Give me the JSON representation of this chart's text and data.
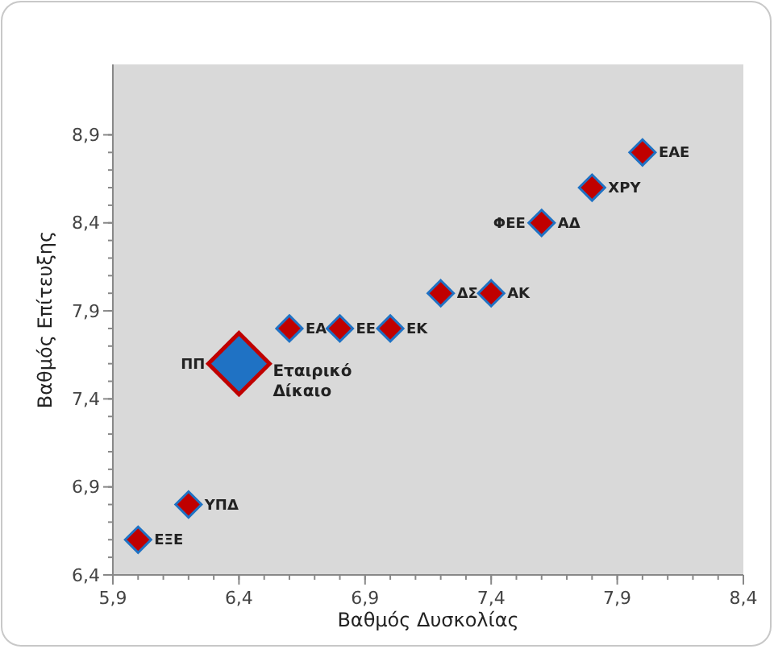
{
  "chart_data": {
    "type": "scatter",
    "xlabel": "Βαθμός Δυσκολίας",
    "ylabel": "Βαθμός Επίτευξης",
    "marker": "diamond",
    "grid": false,
    "xlim": [
      5.9,
      8.4
    ],
    "xticks": [
      {
        "value": 5.9,
        "label": "5,9"
      },
      {
        "value": 6.4,
        "label": "6,4"
      },
      {
        "value": 6.9,
        "label": "6,9"
      },
      {
        "value": 7.4,
        "label": "7,4"
      },
      {
        "value": 7.9,
        "label": "7,9"
      },
      {
        "value": 8.4,
        "label": "8,4"
      }
    ],
    "ylim": [
      6.4,
      9.3
    ],
    "yticks": [
      {
        "value": 6.4,
        "label": "6,4"
      },
      {
        "value": 6.9,
        "label": "6,9"
      },
      {
        "value": 7.4,
        "label": "7,4"
      },
      {
        "value": 7.9,
        "label": "7,9"
      },
      {
        "value": 8.4,
        "label": "8,4"
      },
      {
        "value": 8.9,
        "label": "8,9"
      }
    ],
    "series": [
      {
        "color": "#c00000",
        "x": [
          6.0,
          6.2,
          6.6,
          6.8,
          7.0,
          7.2,
          7.4,
          7.6,
          7.8,
          8.0
        ],
        "values": [
          6.6,
          6.8,
          7.8,
          7.8,
          7.8,
          8.0,
          8.0,
          8.4,
          8.6,
          8.8
        ]
      },
      {
        "color": "#1f72c4",
        "x": [
          6.4
        ],
        "values": [
          7.6
        ]
      }
    ],
    "annotations": [
      {
        "text": "ΕΞΕ",
        "x": 6.0,
        "y": 6.6
      },
      {
        "text": "ΥΠΔ",
        "x": 6.2,
        "y": 6.8
      },
      {
        "text": "ΠΠ",
        "x": 6.4,
        "y": 7.6
      },
      {
        "text": "Εταιρικό Δίκαιο",
        "x": 6.4,
        "y": 7.6
      },
      {
        "text": "ΕΑ",
        "x": 6.6,
        "y": 7.8
      },
      {
        "text": "ΕΕ",
        "x": 6.8,
        "y": 7.8
      },
      {
        "text": "ΕΚ",
        "x": 7.0,
        "y": 7.8
      },
      {
        "text": "ΔΣ",
        "x": 7.2,
        "y": 8.0
      },
      {
        "text": "ΑΚ",
        "x": 7.4,
        "y": 8.0
      },
      {
        "text": "ΦΕΕ",
        "x": 7.6,
        "y": 8.4
      },
      {
        "text": "ΑΔ",
        "x": 7.6,
        "y": 8.4
      },
      {
        "text": "ΧΡΥ",
        "x": 7.8,
        "y": 8.6
      },
      {
        "text": "ΕΑΕ",
        "x": 8.0,
        "y": 8.8
      }
    ]
  }
}
